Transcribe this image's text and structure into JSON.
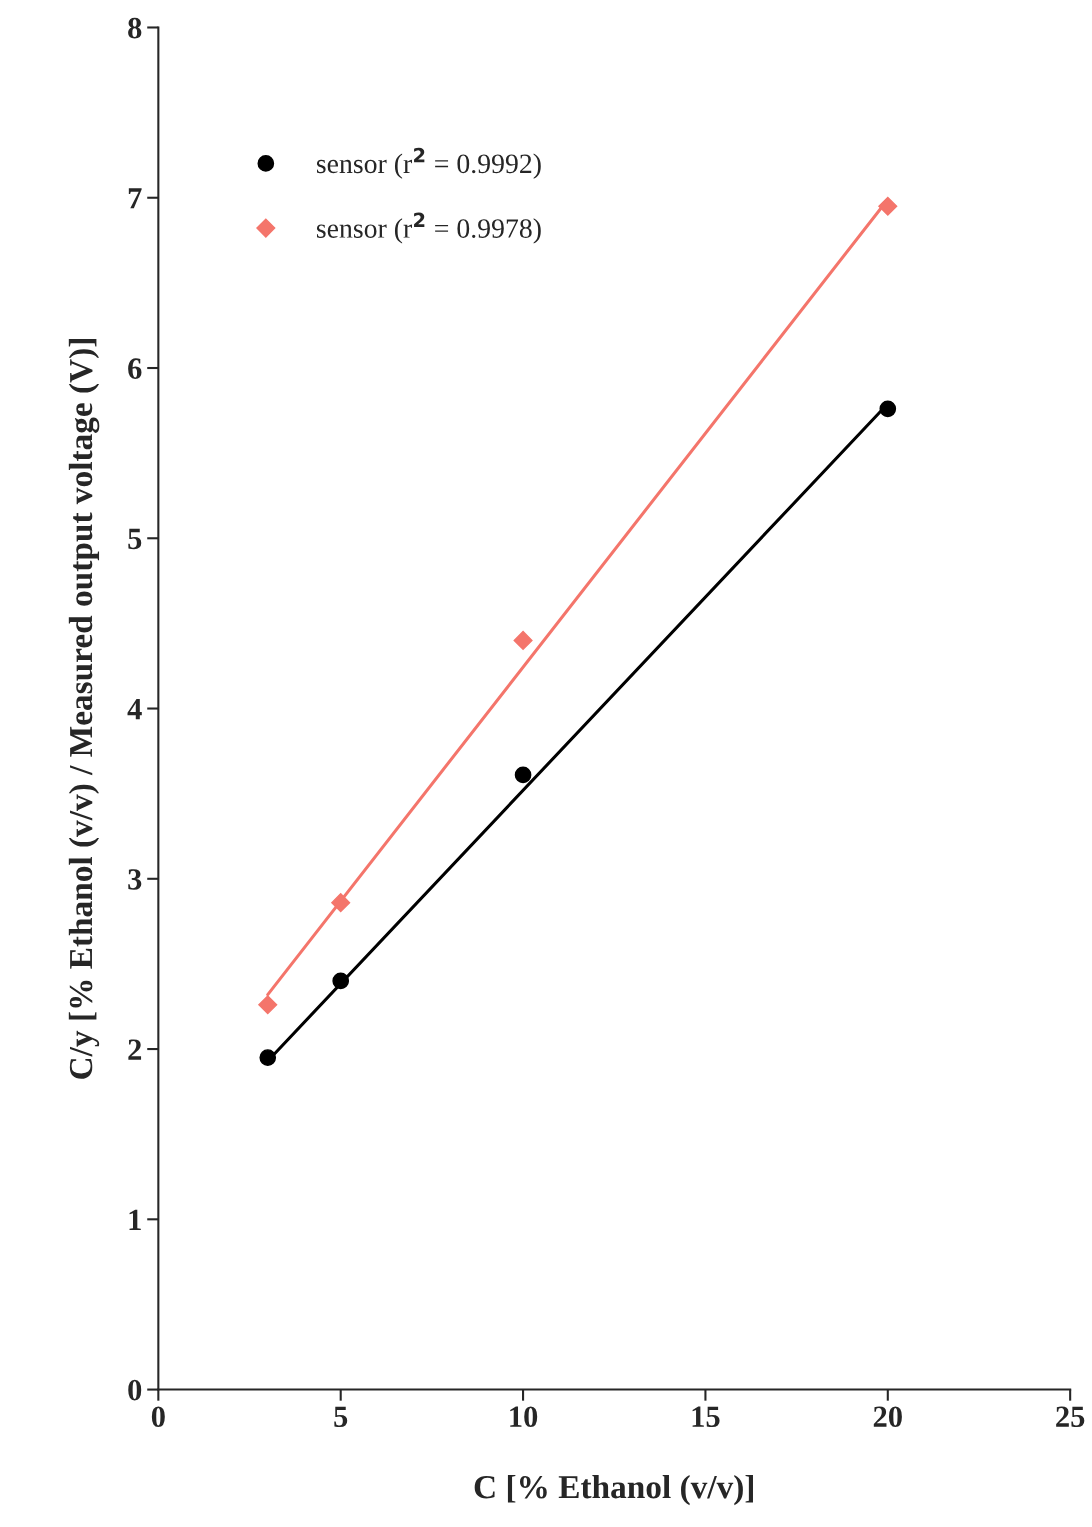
{
  "chart_data": {
    "type": "scatter",
    "xlabel": "C [% Ethanol (v/v)]",
    "ylabel": "C/y [% Ethanol (v/v) / Measured output voltage (V)]",
    "xlim": [
      0,
      25
    ],
    "xticks": [
      0,
      5,
      10,
      15,
      20,
      25
    ],
    "ylim": [
      0,
      8
    ],
    "yticks": [
      0,
      1,
      2,
      3,
      4,
      5,
      6,
      7,
      8
    ],
    "grid": false,
    "legend": "top left",
    "series": [
      {
        "name": "sensor (r$^{2}$ = 0.9992)",
        "color": "#000000",
        "marker": "circle",
        "x": [
          3,
          5,
          10,
          20
        ],
        "values": [
          1.95,
          2.4,
          3.61,
          5.76
        ]
      },
      {
        "name": "sensor (r$^{2}$ = 0.9978)",
        "color": "#f4756b",
        "marker": "diamond",
        "x": [
          3,
          5,
          10,
          20
        ],
        "values": [
          2.26,
          2.86,
          4.4,
          6.95
        ]
      },
      {
        "type": "line",
        "color": "#000000",
        "x": [
          3,
          20
        ],
        "values": [
          1.93,
          5.79
        ]
      },
      {
        "type": "line",
        "color": "#f4756b",
        "x": [
          3,
          20
        ],
        "values": [
          2.32,
          6.99
        ]
      }
    ]
  }
}
